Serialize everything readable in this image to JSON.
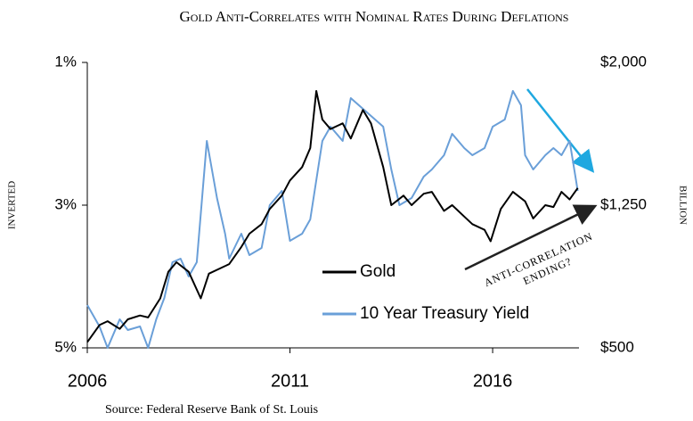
{
  "chart_data": {
    "type": "line",
    "title": "Gold Anti-Correlates with Nominal Rates During Deflations",
    "ylabel": "Inverted",
    "y2label": "Billion",
    "source": "Source: Federal Reserve Bank of St. Louis",
    "annotations": [
      "Anti-Correlation",
      "Ending?"
    ],
    "xlim": [
      2006,
      2018.13
    ],
    "xticks": [
      2006,
      2011,
      2016
    ],
    "ylim": [
      1,
      5
    ],
    "y_inverted": true,
    "yticks": [
      {
        "value": 1,
        "label": "1%"
      },
      {
        "value": 3,
        "label": "3%"
      },
      {
        "value": 5,
        "label": "5%"
      }
    ],
    "y2lim": [
      500,
      2000
    ],
    "y2ticks": [
      {
        "value": 2000,
        "label": "$2,000"
      },
      {
        "value": 1250,
        "label": "$1,250"
      },
      {
        "value": 500,
        "label": "$500"
      }
    ],
    "legend": "center",
    "series": [
      {
        "name": "Gold",
        "color": "#000000",
        "axis": "y2",
        "x": [
          2006.0,
          2006.3,
          2006.5,
          2006.8,
          2007.0,
          2007.3,
          2007.5,
          2007.8,
          2008.0,
          2008.2,
          2008.5,
          2008.8,
          2009.0,
          2009.3,
          2009.5,
          2009.8,
          2010.0,
          2010.3,
          2010.5,
          2010.8,
          2011.0,
          2011.3,
          2011.5,
          2011.65,
          2011.8,
          2012.0,
          2012.3,
          2012.5,
          2012.8,
          2013.0,
          2013.3,
          2013.5,
          2013.8,
          2014.0,
          2014.3,
          2014.5,
          2014.8,
          2015.0,
          2015.3,
          2015.5,
          2015.8,
          2015.95,
          2016.2,
          2016.5,
          2016.8,
          2017.0,
          2017.3,
          2017.5,
          2017.7,
          2017.9,
          2018.1
        ],
        "values": [
          530,
          620,
          640,
          600,
          650,
          670,
          660,
          760,
          900,
          950,
          900,
          760,
          890,
          920,
          940,
          1030,
          1100,
          1150,
          1230,
          1300,
          1380,
          1450,
          1550,
          1850,
          1700,
          1650,
          1680,
          1600,
          1750,
          1680,
          1450,
          1250,
          1300,
          1250,
          1310,
          1320,
          1220,
          1250,
          1190,
          1150,
          1120,
          1060,
          1230,
          1320,
          1270,
          1180,
          1250,
          1240,
          1320,
          1280,
          1340
        ]
      },
      {
        "name": "10 Year Treasury Yield",
        "color": "#6a9fd8",
        "axis": "y",
        "x": [
          2006.0,
          2006.3,
          2006.5,
          2006.8,
          2007.0,
          2007.3,
          2007.5,
          2007.7,
          2007.9,
          2008.1,
          2008.3,
          2008.5,
          2008.7,
          2008.95,
          2009.2,
          2009.4,
          2009.5,
          2009.8,
          2010.0,
          2010.3,
          2010.5,
          2010.8,
          2011.0,
          2011.3,
          2011.5,
          2011.8,
          2012.0,
          2012.3,
          2012.5,
          2012.9,
          2013.3,
          2013.5,
          2013.7,
          2014.0,
          2014.3,
          2014.5,
          2014.8,
          2015.0,
          2015.3,
          2015.5,
          2015.8,
          2016.0,
          2016.3,
          2016.5,
          2016.7,
          2016.8,
          2017.0,
          2017.3,
          2017.5,
          2017.7,
          2017.9,
          2018.1
        ],
        "values": [
          4.4,
          4.7,
          5.0,
          4.6,
          4.75,
          4.7,
          5.0,
          4.6,
          4.3,
          3.8,
          3.75,
          4.0,
          3.8,
          2.1,
          2.9,
          3.4,
          3.75,
          3.4,
          3.7,
          3.6,
          3.0,
          2.8,
          3.5,
          3.4,
          3.2,
          2.1,
          1.9,
          2.1,
          1.5,
          1.7,
          1.9,
          2.5,
          3.0,
          2.9,
          2.6,
          2.5,
          2.3,
          2.0,
          2.2,
          2.3,
          2.2,
          1.9,
          1.8,
          1.4,
          1.6,
          2.3,
          2.5,
          2.3,
          2.2,
          2.3,
          2.1,
          2.8
        ]
      }
    ]
  }
}
